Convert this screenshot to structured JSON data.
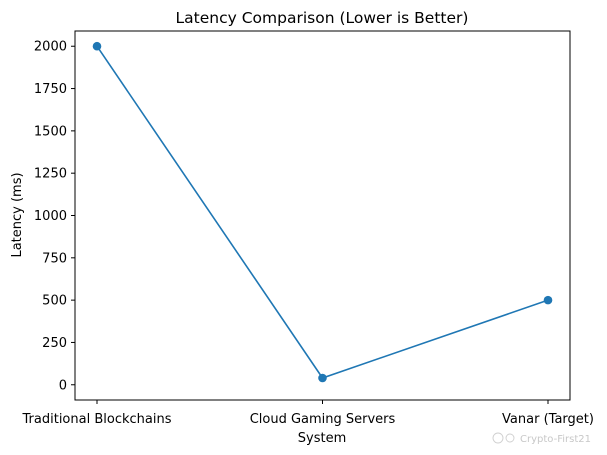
{
  "chart_data": {
    "type": "line",
    "title": "Latency Comparison (Lower is Better)",
    "xlabel": "System",
    "ylabel": "Latency (ms)",
    "categories": [
      "Traditional Blockchains",
      "Cloud Gaming Servers",
      "Vanar (Target)"
    ],
    "series": [
      {
        "values": [
          2000,
          40,
          500
        ],
        "color": "#1f77b4",
        "marker": "circle"
      }
    ],
    "yticks": [
      0,
      250,
      500,
      750,
      1000,
      1250,
      1500,
      1750,
      2000
    ],
    "ylim": [
      -90,
      2090
    ],
    "grid": false,
    "legend": "none"
  },
  "watermark": "Crypto-First21"
}
